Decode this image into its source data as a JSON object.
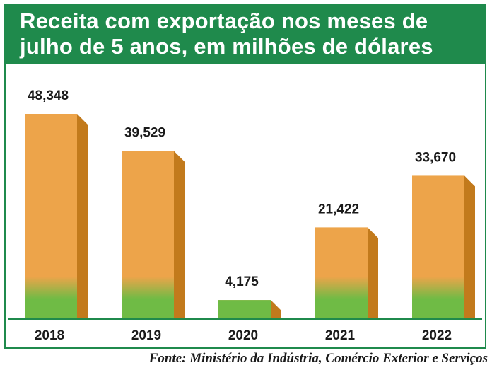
{
  "chart_data": {
    "type": "bar",
    "title": "Receita com exportação nos meses de julho de 5 anos, em milhões de dólares",
    "title_lines": [
      "Receita com exportação nos meses de",
      "julho de 5 anos, em milhões de dólares"
    ],
    "categories": [
      "2018",
      "2019",
      "2020",
      "2021",
      "2022"
    ],
    "values": [
      48.348,
      39.529,
      4.175,
      21.422,
      33.67
    ],
    "value_labels": [
      "48,348",
      "39,529",
      "4,175",
      "21,422",
      "33,670"
    ],
    "xlabel": "",
    "ylabel": "",
    "grid": false,
    "legend": "none"
  },
  "source": "Fonte: Ministério da Indústria, Comércio Exterior e Serviços",
  "colors": {
    "brand_green": "#1f8a4c",
    "bar_orange": "#eda44a",
    "bar_side": "#c27a1c",
    "bar_base_green": "#6fbb45",
    "baseline": "#1f8a4c",
    "text": "#1a1a1a"
  }
}
